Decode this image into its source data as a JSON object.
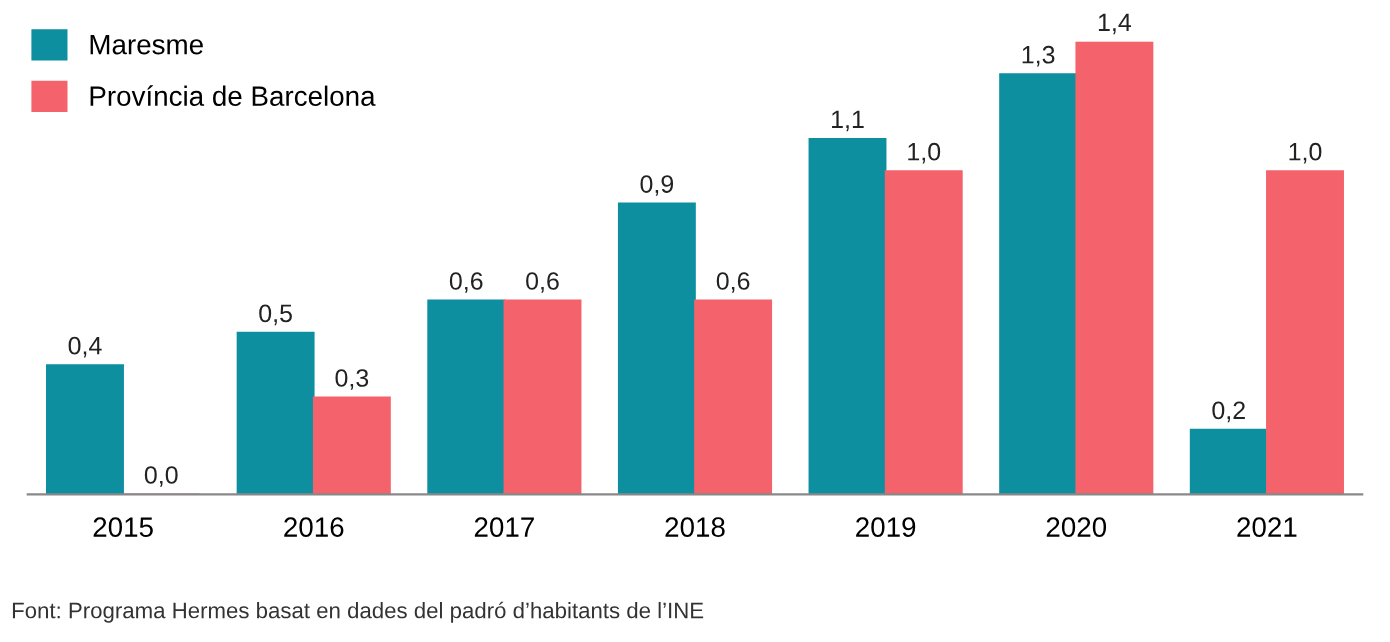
{
  "chart_data": {
    "type": "bar",
    "categories": [
      "2015",
      "2016",
      "2017",
      "2018",
      "2019",
      "2020",
      "2021"
    ],
    "series": [
      {
        "name": "Maresme",
        "color": "#0e8fa0",
        "values": [
          0.4,
          0.5,
          0.6,
          0.9,
          1.1,
          1.3,
          0.2
        ],
        "value_labels": [
          "0,4",
          "0,5",
          "0,6",
          "0,9",
          "1,1",
          "1,3",
          "0,2"
        ]
      },
      {
        "name": "Província de Barcelona",
        "color": "#f4636b",
        "values": [
          0.0,
          0.3,
          0.6,
          0.6,
          1.0,
          1.4,
          1.0
        ],
        "value_labels": [
          "0,0",
          "0,3",
          "0,6",
          "0,6",
          "1,0",
          "1,4",
          "1,0"
        ]
      }
    ],
    "legend": "top left",
    "grid": false,
    "annotations": [
      "Font: Programa Hermes basat en dades del padró d’habitants de l’INE"
    ]
  }
}
